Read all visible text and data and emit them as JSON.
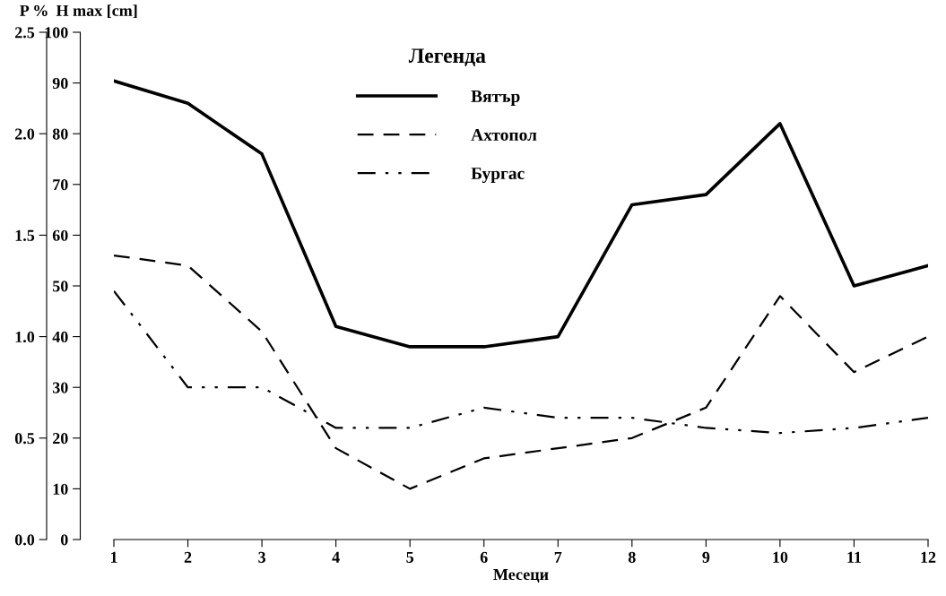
{
  "chart_data": {
    "type": "line",
    "xlabel": "Месеци",
    "ylabel": "H max [cm]",
    "y2label": "P %",
    "legend_title": "Легенда",
    "legend": "top",
    "grid": false,
    "marker": "none",
    "x": [
      1,
      2,
      3,
      4,
      5,
      6,
      7,
      8,
      9,
      10,
      11,
      12
    ],
    "xlim": [
      1,
      12
    ],
    "xticks": [
      1,
      2,
      3,
      4,
      5,
      6,
      7,
      8,
      9,
      10,
      11,
      12
    ],
    "ylim": [
      0,
      100
    ],
    "yticks": [
      0,
      10,
      20,
      30,
      40,
      50,
      60,
      70,
      80,
      90,
      100
    ],
    "y2lim": [
      0,
      2.5
    ],
    "y2ticks": [
      {
        "value": 0,
        "label": "0.0"
      },
      {
        "value": 0.5,
        "label": "0.5"
      },
      {
        "value": 1,
        "label": "1.0"
      },
      {
        "value": 1.5,
        "label": "1.5"
      },
      {
        "value": 2,
        "label": "2.0"
      },
      {
        "value": 2.5,
        "label": "2.5"
      }
    ],
    "series": [
      {
        "name": "Вятър",
        "color": "#000000",
        "axis": "y2",
        "line_style": "solid",
        "values": [
          2.26,
          2.15,
          1.9,
          1.05,
          0.95,
          0.95,
          1.0,
          1.65,
          1.7,
          2.05,
          1.25,
          1.35
        ]
      },
      {
        "name": "Ахтопол",
        "color": "#000000",
        "line_style": "dashed",
        "values": [
          56,
          54,
          41,
          18,
          10,
          16,
          18,
          20,
          26,
          48,
          33,
          40
        ]
      },
      {
        "name": "Бургас",
        "color": "#000000",
        "line_style": "dashdotdot",
        "values": [
          49,
          30,
          30,
          22,
          22,
          26,
          24,
          24,
          22,
          21,
          22,
          24
        ]
      }
    ]
  }
}
